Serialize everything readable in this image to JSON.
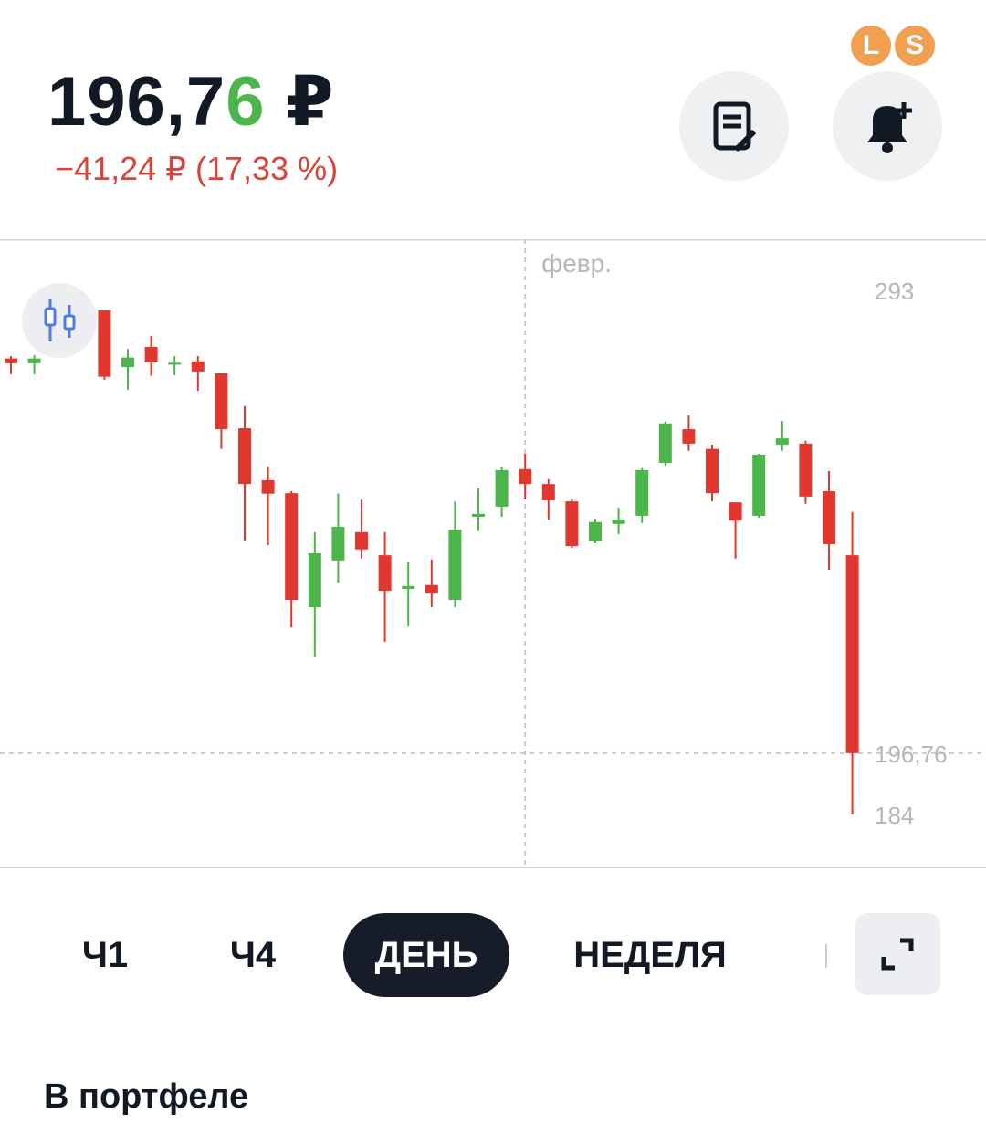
{
  "header": {
    "price_main": "196,7",
    "price_last": "6",
    "currency": "₽",
    "change": "−41,24 ₽ (17,33 %)",
    "badges": [
      "L",
      "S"
    ]
  },
  "chart_data": {
    "type": "candlestick",
    "up_color": "#4cb64c",
    "down_color": "#e0382f",
    "grid": false,
    "last_price_line": true,
    "categories": [
      null,
      null,
      null,
      null,
      null,
      null,
      null,
      null,
      null,
      null,
      null,
      null,
      null,
      null,
      null,
      null,
      null,
      null,
      null,
      null,
      null,
      null,
      "февр.",
      null,
      null,
      null,
      null,
      null,
      null,
      null,
      null,
      null,
      null,
      null,
      null,
      null,
      null
    ],
    "open": [
      278.8,
      277.8,
      null,
      null,
      288.8,
      277.0,
      281.2,
      277.6,
      278.2,
      275.7,
      264.3,
      253.5,
      250.8,
      227.1,
      236.8,
      242.7,
      237.9,
      230.9,
      231.7,
      228.6,
      245.9,
      248.0,
      255.8,
      252.7,
      249.1,
      240.8,
      244.4,
      246.1,
      257.1,
      264.1,
      260.0,
      248.9,
      246.1,
      260.9,
      261.1,
      251.2,
      237.9
    ],
    "high": [
      279.3,
      279.5,
      null,
      null,
      288.8,
      280.8,
      283.5,
      279.3,
      279.3,
      275.7,
      268.9,
      256.3,
      251.2,
      242.7,
      250.7,
      249.5,
      242.7,
      236.4,
      237.0,
      249.1,
      251.8,
      256.2,
      259.0,
      253.7,
      249.5,
      245.5,
      247.8,
      256.0,
      265.7,
      267.0,
      260.9,
      248.9,
      259.0,
      265.8,
      261.7,
      255.4,
      246.9
    ],
    "low": [
      275.5,
      275.5,
      null,
      null,
      274.4,
      272.3,
      275.2,
      275.3,
      272.1,
      260.0,
      241.0,
      240.0,
      222.9,
      216.7,
      232.2,
      237.2,
      219.9,
      223.1,
      227.1,
      227.1,
      242.9,
      245.9,
      249.5,
      245.3,
      239.4,
      240.4,
      242.3,
      244.6,
      256.5,
      259.6,
      249.1,
      237.2,
      245.7,
      259.6,
      248.6,
      234.9,
      184
    ],
    "close": [
      277.8,
      278.8,
      null,
      null,
      275.0,
      279.0,
      278.0,
      277.9,
      276.1,
      264.1,
      252.7,
      250.7,
      228.6,
      238.3,
      243.8,
      239.1,
      230.5,
      231.5,
      230.1,
      243.2,
      246.5,
      255.6,
      252.7,
      249.3,
      239.8,
      244.8,
      245.3,
      255.6,
      265.3,
      261.1,
      250.8,
      245.1,
      258.8,
      262.2,
      250.1,
      240.2,
      196.76
    ],
    "ylim": [
      173.0,
      303.6
    ],
    "yticks": [
      293,
      {
        "value": 196.76,
        "label": "196,76"
      },
      184
    ]
  },
  "tabs": [
    "Ч1",
    "Ч4",
    "ДЕНЬ",
    "НЕДЕЛЯ"
  ],
  "section_title": "В портфеле"
}
